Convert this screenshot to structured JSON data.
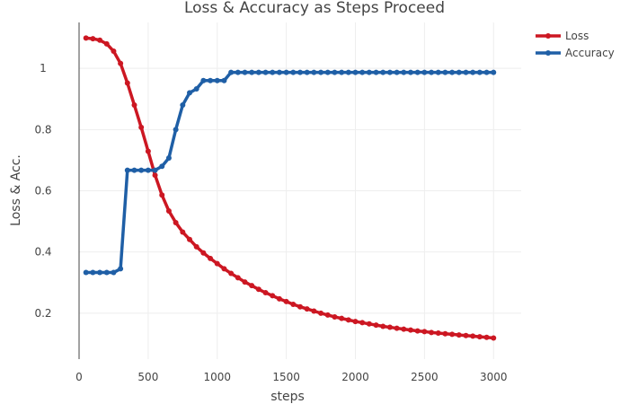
{
  "chart_data": {
    "type": "line",
    "title": "Loss & Accuracy as Steps Proceed",
    "xlabel": "steps",
    "ylabel": "Loss & Acc.",
    "xlim": [
      0,
      3200
    ],
    "ylim": [
      0.05,
      1.15
    ],
    "x_ticks": [
      0,
      500,
      1000,
      1500,
      2000,
      2500,
      3000
    ],
    "y_ticks": [
      0.2,
      0.4,
      0.6,
      0.8,
      1
    ],
    "x_tick_labels": [
      "0",
      "500",
      "1000",
      "1500",
      "2000",
      "2500",
      "3000"
    ],
    "y_tick_labels": [
      "0.2",
      "0.4",
      "0.6",
      "0.8",
      "1"
    ],
    "grid": true,
    "legend_position": "top-right",
    "x": [
      50,
      100,
      150,
      200,
      250,
      300,
      350,
      400,
      450,
      500,
      550,
      600,
      650,
      700,
      750,
      800,
      850,
      900,
      950,
      1000,
      1050,
      1100,
      1150,
      1200,
      1250,
      1300,
      1350,
      1400,
      1450,
      1500,
      1550,
      1600,
      1650,
      1700,
      1750,
      1800,
      1850,
      1900,
      1950,
      2000,
      2050,
      2100,
      2150,
      2200,
      2250,
      2300,
      2350,
      2400,
      2450,
      2500,
      2550,
      2600,
      2650,
      2700,
      2750,
      2800,
      2850,
      2900,
      2950,
      3000
    ],
    "series": [
      {
        "name": "Loss",
        "color": "#cc1722",
        "values": [
          1.099,
          1.097,
          1.092,
          1.08,
          1.056,
          1.016,
          0.952,
          0.88,
          0.807,
          0.729,
          0.651,
          0.586,
          0.534,
          0.496,
          0.465,
          0.441,
          0.417,
          0.397,
          0.379,
          0.362,
          0.345,
          0.33,
          0.316,
          0.302,
          0.29,
          0.278,
          0.267,
          0.257,
          0.247,
          0.238,
          0.229,
          0.221,
          0.214,
          0.207,
          0.2,
          0.194,
          0.188,
          0.183,
          0.178,
          0.173,
          0.169,
          0.165,
          0.161,
          0.157,
          0.154,
          0.151,
          0.148,
          0.145,
          0.142,
          0.14,
          0.137,
          0.135,
          0.133,
          0.131,
          0.129,
          0.127,
          0.125,
          0.123,
          0.121,
          0.119
        ]
      },
      {
        "name": "Accuracy",
        "color": "#1f5fa6",
        "values": [
          0.333,
          0.333,
          0.333,
          0.333,
          0.333,
          0.345,
          0.667,
          0.667,
          0.667,
          0.667,
          0.667,
          0.68,
          0.707,
          0.8,
          0.88,
          0.92,
          0.933,
          0.96,
          0.96,
          0.96,
          0.96,
          0.987,
          0.987,
          0.987,
          0.987,
          0.987,
          0.987,
          0.987,
          0.987,
          0.987,
          0.987,
          0.987,
          0.987,
          0.987,
          0.987,
          0.987,
          0.987,
          0.987,
          0.987,
          0.987,
          0.987,
          0.987,
          0.987,
          0.987,
          0.987,
          0.987,
          0.987,
          0.987,
          0.987,
          0.987,
          0.987,
          0.987,
          0.987,
          0.987,
          0.987,
          0.987,
          0.987,
          0.987,
          0.987,
          0.987
        ]
      }
    ]
  }
}
